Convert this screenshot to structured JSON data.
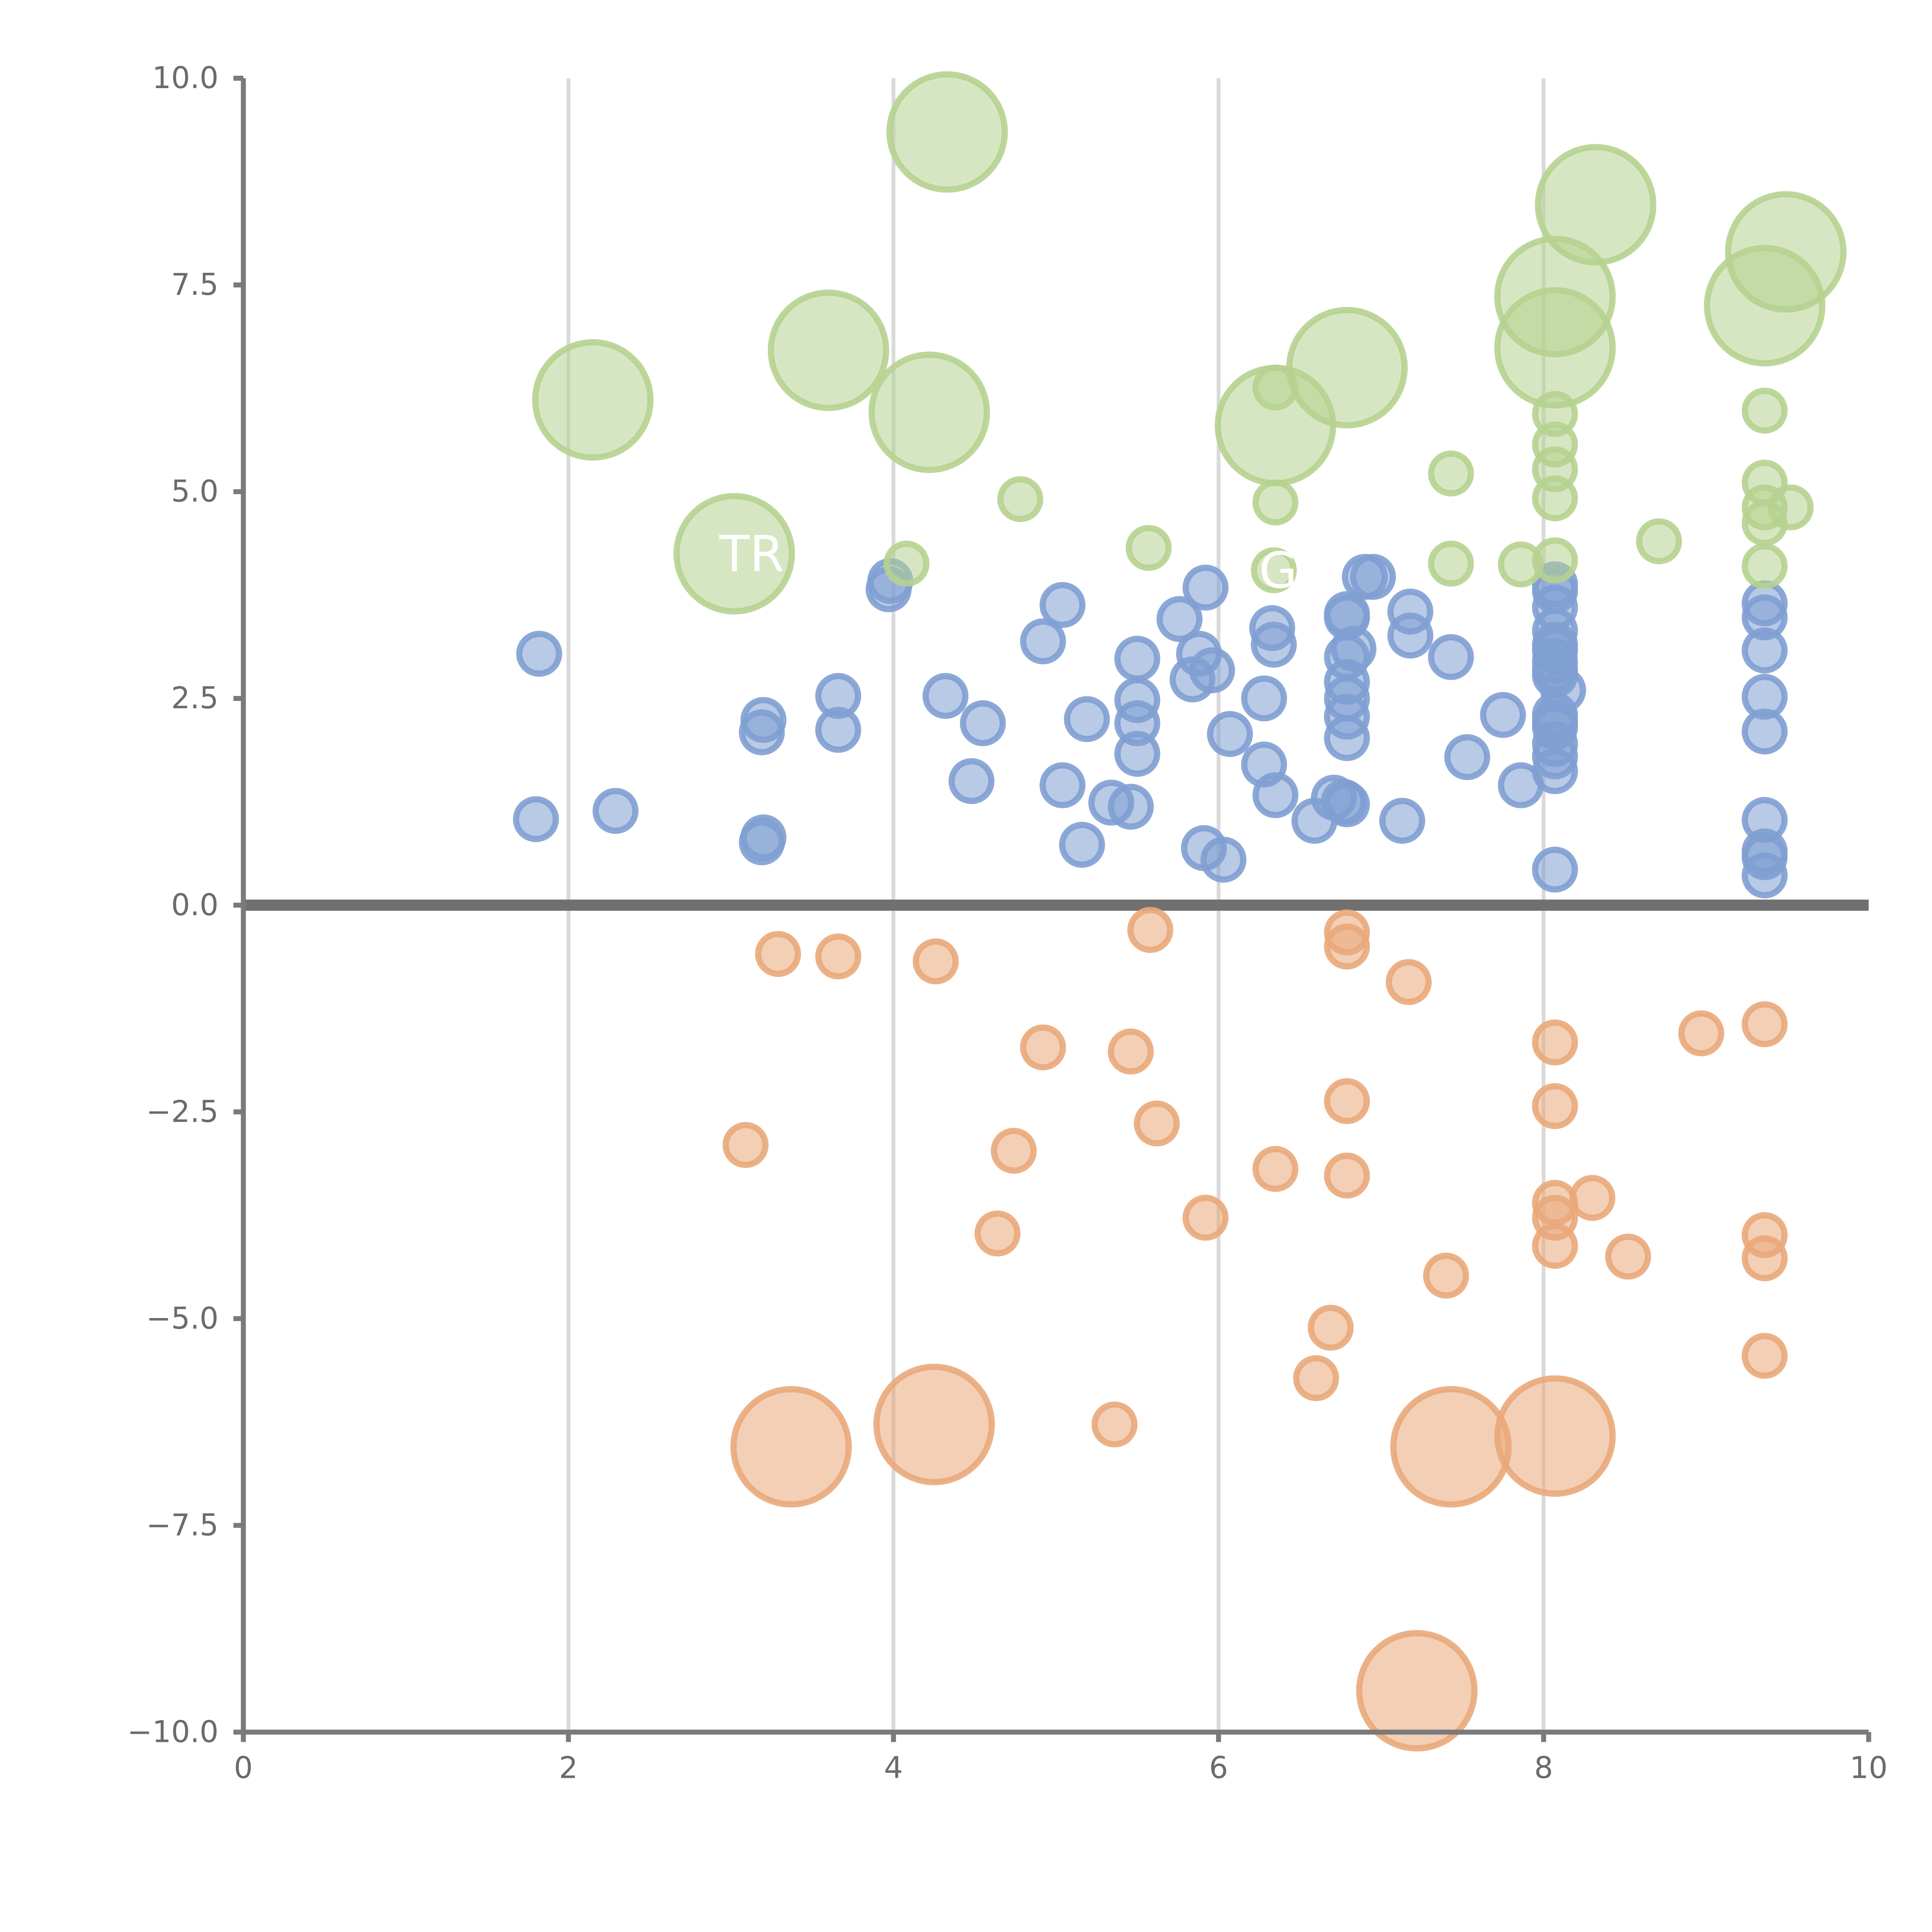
{
  "chart_data": {
    "type": "scatter",
    "title": "",
    "xlabel": "",
    "ylabel": "",
    "xlim": [
      0,
      10
    ],
    "ylim": [
      -10,
      10
    ],
    "grid": "vertical",
    "xticks": [
      "0",
      "2",
      "4",
      "6",
      "8",
      "10"
    ],
    "xtick_values": [
      0,
      2,
      4,
      6,
      8,
      10
    ],
    "yticks": [
      "10.0",
      "7.5",
      "5.0",
      "2.5",
      "0.0",
      "−2.5",
      "−5.0",
      "−7.5",
      "−10.0"
    ],
    "ytick_values": [
      10,
      7.5,
      5,
      2.5,
      0,
      -2.5,
      -5,
      -7.5,
      -10
    ],
    "reference_line_y": 0,
    "annotations": [
      {
        "text": "TR",
        "x": 3.02,
        "y": 4.25,
        "series": "green"
      },
      {
        "text": "GN",
        "x": 6.34,
        "y": 4.05,
        "series": "green"
      }
    ],
    "series": [
      {
        "name": "blue",
        "color": "#7f9fd1",
        "points": [
          [
            1.82,
            3.04,
            1
          ],
          [
            1.8,
            1.04,
            1
          ],
          [
            2.29,
            1.14,
            1
          ],
          [
            3.2,
            2.24,
            1
          ],
          [
            3.19,
            2.09,
            1
          ],
          [
            3.2,
            0.82,
            1
          ],
          [
            3.19,
            0.76,
            1
          ],
          [
            3.66,
            2.53,
            1
          ],
          [
            3.66,
            2.12,
            1
          ],
          [
            3.98,
            3.92,
            1
          ],
          [
            3.97,
            3.82,
            1
          ],
          [
            4.32,
            2.53,
            1
          ],
          [
            4.55,
            2.2,
            1
          ],
          [
            4.48,
            1.5,
            1
          ],
          [
            4.92,
            3.19,
            1
          ],
          [
            5.04,
            3.63,
            1
          ],
          [
            5.04,
            1.45,
            1
          ],
          [
            5.19,
            2.25,
            1
          ],
          [
            5.16,
            0.73,
            1
          ],
          [
            5.34,
            1.24,
            1
          ],
          [
            5.46,
            1.19,
            1
          ],
          [
            5.5,
            2.98,
            1
          ],
          [
            5.5,
            2.48,
            1
          ],
          [
            5.5,
            2.2,
            1
          ],
          [
            5.5,
            1.83,
            1
          ],
          [
            5.76,
            3.46,
            1
          ],
          [
            5.88,
            3.04,
            1
          ],
          [
            5.92,
            3.84,
            1
          ],
          [
            5.84,
            2.73,
            1
          ],
          [
            5.96,
            2.84,
            1
          ],
          [
            6.07,
            2.07,
            1
          ],
          [
            5.91,
            0.69,
            1
          ],
          [
            6.03,
            0.55,
            1
          ],
          [
            6.28,
            2.5,
            1
          ],
          [
            6.33,
            3.35,
            1
          ],
          [
            6.34,
            3.15,
            1
          ],
          [
            6.28,
            1.7,
            1
          ],
          [
            6.35,
            1.33,
            1
          ],
          [
            6.59,
            1.02,
            1
          ],
          [
            6.71,
            1.3,
            1
          ],
          [
            6.77,
            1.25,
            1
          ],
          [
            6.79,
            3.52,
            1
          ],
          [
            6.79,
            3.48,
            1
          ],
          [
            6.83,
            3.1,
            1
          ],
          [
            6.79,
            3.0,
            1
          ],
          [
            6.79,
            2.7,
            1
          ],
          [
            6.79,
            2.5,
            1
          ],
          [
            6.79,
            2.28,
            1
          ],
          [
            6.79,
            2.02,
            1
          ],
          [
            6.79,
            1.22,
            1
          ],
          [
            6.9,
            3.97,
            1
          ],
          [
            6.95,
            3.97,
            1
          ],
          [
            7.13,
            1.02,
            1
          ],
          [
            7.18,
            3.55,
            1
          ],
          [
            7.18,
            3.26,
            1
          ],
          [
            7.43,
            3.0,
            1
          ],
          [
            7.53,
            1.79,
            1
          ],
          [
            7.75,
            2.3,
            1
          ],
          [
            7.86,
            1.45,
            1
          ],
          [
            8.07,
            3.88,
            1
          ],
          [
            8.07,
            3.8,
            1
          ],
          [
            8.07,
            3.6,
            1
          ],
          [
            8.07,
            3.32,
            1
          ],
          [
            8.07,
            3.15,
            1
          ],
          [
            8.07,
            3.08,
            1
          ],
          [
            8.07,
            2.95,
            1
          ],
          [
            8.07,
            2.85,
            1
          ],
          [
            8.07,
            2.78,
            1
          ],
          [
            8.12,
            2.6,
            1
          ],
          [
            8.07,
            2.3,
            1
          ],
          [
            8.07,
            2.22,
            1
          ],
          [
            8.07,
            2.15,
            1
          ],
          [
            8.07,
            1.95,
            1
          ],
          [
            8.07,
            1.8,
            1
          ],
          [
            8.07,
            1.62,
            1
          ],
          [
            8.07,
            0.43,
            1
          ],
          [
            9.36,
            3.65,
            1
          ],
          [
            9.36,
            3.48,
            1
          ],
          [
            9.36,
            3.08,
            1
          ],
          [
            9.36,
            2.52,
            1
          ],
          [
            9.36,
            2.1,
            1
          ],
          [
            9.36,
            1.03,
            1
          ],
          [
            9.36,
            0.65,
            1
          ],
          [
            9.36,
            0.58,
            1
          ],
          [
            9.36,
            0.36,
            1
          ]
        ]
      },
      {
        "name": "orange",
        "color": "#e9a87a",
        "points": [
          [
            3.29,
            -0.59,
            1
          ],
          [
            3.66,
            -0.62,
            1
          ],
          [
            4.26,
            -0.68,
            1
          ],
          [
            5.58,
            -0.3,
            1
          ],
          [
            6.79,
            -0.33,
            1
          ],
          [
            6.79,
            -0.5,
            1
          ],
          [
            7.17,
            -0.93,
            1
          ],
          [
            4.92,
            -1.72,
            1
          ],
          [
            5.46,
            -1.77,
            1
          ],
          [
            8.07,
            -1.66,
            1
          ],
          [
            8.97,
            -1.55,
            1
          ],
          [
            9.36,
            -1.44,
            1
          ],
          [
            3.09,
            -2.9,
            1
          ],
          [
            4.74,
            -2.97,
            1
          ],
          [
            5.62,
            -2.64,
            1
          ],
          [
            6.79,
            -2.37,
            1
          ],
          [
            8.07,
            -2.43,
            1
          ],
          [
            6.35,
            -3.19,
            1
          ],
          [
            6.79,
            -3.27,
            1
          ],
          [
            8.07,
            -3.6,
            1
          ],
          [
            8.3,
            -3.54,
            1
          ],
          [
            5.92,
            -3.78,
            1
          ],
          [
            8.07,
            -3.78,
            1
          ],
          [
            4.64,
            -3.97,
            1
          ],
          [
            9.36,
            -3.99,
            1
          ],
          [
            8.07,
            -4.12,
            1
          ],
          [
            8.52,
            -4.25,
            1
          ],
          [
            9.36,
            -4.27,
            1
          ],
          [
            7.4,
            -4.48,
            1
          ],
          [
            6.69,
            -5.11,
            1
          ],
          [
            9.36,
            -5.45,
            1
          ],
          [
            6.6,
            -5.72,
            1
          ],
          [
            5.36,
            -6.28,
            1
          ],
          [
            3.37,
            -6.55,
            2.9
          ],
          [
            4.25,
            -6.28,
            2.9
          ],
          [
            7.43,
            -6.55,
            2.9
          ],
          [
            8.07,
            -6.42,
            2.9
          ],
          [
            7.22,
            -9.5,
            2.9
          ]
        ]
      },
      {
        "name": "green",
        "color": "#b6d190",
        "points": [
          [
            4.33,
            9.35,
            2.9
          ],
          [
            8.32,
            8.47,
            2.9
          ],
          [
            9.49,
            7.9,
            2.9
          ],
          [
            8.07,
            7.36,
            2.9
          ],
          [
            9.36,
            7.25,
            2.9
          ],
          [
            8.07,
            6.74,
            2.9
          ],
          [
            3.6,
            6.71,
            2.9
          ],
          [
            6.79,
            6.5,
            2.9
          ],
          [
            2.15,
            6.11,
            2.9
          ],
          [
            4.22,
            5.96,
            2.9
          ],
          [
            6.35,
            5.8,
            2.9
          ],
          [
            3.02,
            4.25,
            2.9
          ],
          [
            6.35,
            6.26,
            1
          ],
          [
            8.07,
            5.94,
            1
          ],
          [
            9.36,
            5.98,
            1
          ],
          [
            8.07,
            5.57,
            1
          ],
          [
            8.07,
            5.27,
            1
          ],
          [
            7.43,
            5.22,
            1
          ],
          [
            9.36,
            5.11,
            1
          ],
          [
            4.78,
            4.91,
            1
          ],
          [
            6.35,
            4.87,
            1
          ],
          [
            8.07,
            4.92,
            1
          ],
          [
            9.36,
            4.81,
            1
          ],
          [
            9.36,
            4.62,
            1
          ],
          [
            9.52,
            4.81,
            1
          ],
          [
            8.71,
            4.4,
            1
          ],
          [
            5.57,
            4.32,
            1
          ],
          [
            4.08,
            4.13,
            1
          ],
          [
            7.43,
            4.13,
            1
          ],
          [
            7.86,
            4.12,
            1
          ],
          [
            8.07,
            4.17,
            1
          ],
          [
            9.36,
            4.1,
            1
          ],
          [
            6.34,
            4.05,
            1
          ]
        ]
      }
    ]
  }
}
